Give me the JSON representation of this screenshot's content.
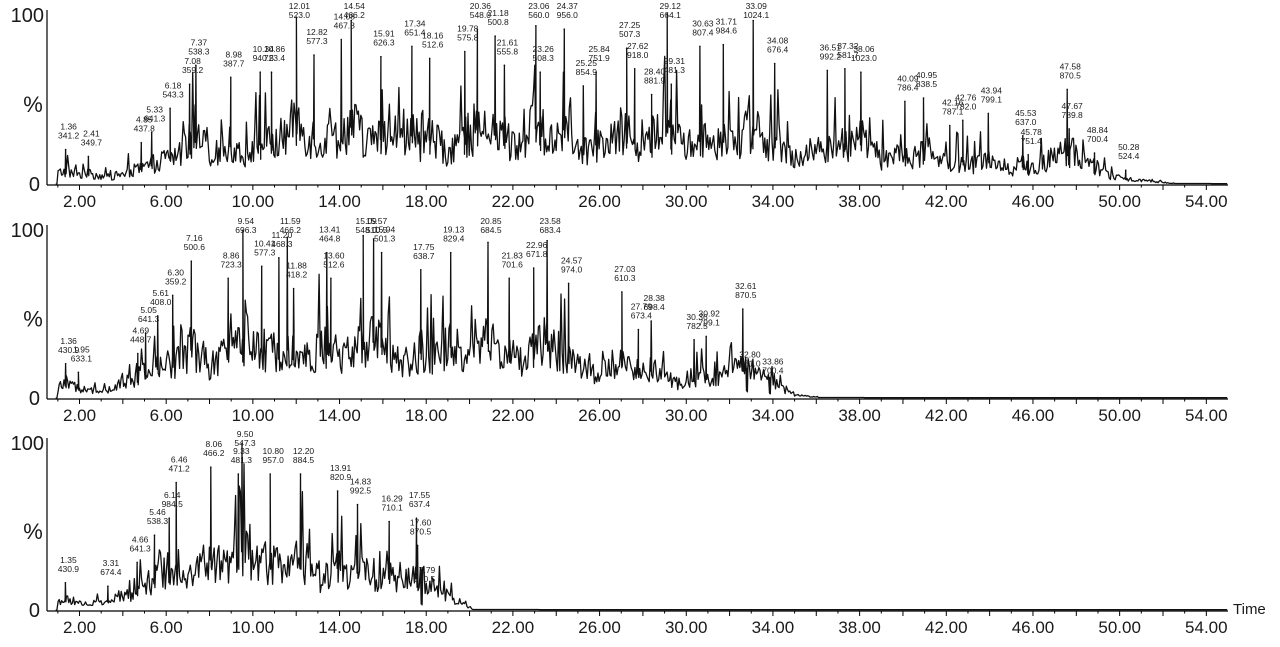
{
  "x_axis_label": "Time",
  "chart_data": [
    {
      "type": "line",
      "ylabel": "%",
      "xlim": [
        0.5,
        55.0
      ],
      "ylim": [
        0,
        100
      ],
      "xticks": [
        "2.00",
        "6.00",
        "10.00",
        "14.00",
        "18.00",
        "22.00",
        "26.00",
        "30.00",
        "34.00",
        "38.00",
        "42.00",
        "46.00",
        "50.00",
        "54.00"
      ],
      "yticks": [
        "0",
        "100"
      ],
      "trace_end": 52.0,
      "peaks": [
        {
          "t": "1.36",
          "mz": "341.2",
          "x": 1.36,
          "y": 20
        },
        {
          "t": "2.41",
          "mz": "349.7",
          "x": 2.41,
          "y": 16
        },
        {
          "t": "4.85",
          "mz": "437.8",
          "x": 4.85,
          "y": 24
        },
        {
          "t": "5.33",
          "mz": "641.3",
          "x": 5.33,
          "y": 30
        },
        {
          "t": "6.18",
          "mz": "543.3",
          "x": 6.18,
          "y": 44
        },
        {
          "t": "7.08",
          "mz": "359.2",
          "x": 7.08,
          "y": 58
        },
        {
          "t": "7.37",
          "mz": "538.3",
          "x": 7.37,
          "y": 69
        },
        {
          "t": "8.98",
          "mz": "387.7",
          "x": 8.98,
          "y": 62
        },
        {
          "t": "10.34",
          "mz": "940.5",
          "x": 10.34,
          "y": 65
        },
        {
          "t": "10.86",
          "mz": "723.4",
          "x": 10.86,
          "y": 65
        },
        {
          "t": "12.01",
          "mz": "523.0",
          "x": 12.01,
          "y": 97
        },
        {
          "t": "12.82",
          "mz": "577.3",
          "x": 12.82,
          "y": 75
        },
        {
          "t": "14.08",
          "mz": "467.8",
          "x": 14.08,
          "y": 84
        },
        {
          "t": "14.54",
          "mz": "466.2",
          "x": 14.54,
          "y": 95
        },
        {
          "t": "15.91",
          "mz": "626.3",
          "x": 15.91,
          "y": 74
        },
        {
          "t": "17.34",
          "mz": "651.4",
          "x": 17.34,
          "y": 80
        },
        {
          "t": "18.16",
          "mz": "512.6",
          "x": 18.16,
          "y": 73
        },
        {
          "t": "19.78",
          "mz": "575.8",
          "x": 19.78,
          "y": 77
        },
        {
          "t": "20.36",
          "mz": "548.0",
          "x": 20.36,
          "y": 90
        },
        {
          "t": "21.18",
          "mz": "500.8",
          "x": 21.18,
          "y": 86
        },
        {
          "t": "21.61",
          "mz": "555.8",
          "x": 21.61,
          "y": 69
        },
        {
          "t": "23.06",
          "mz": "560.0",
          "x": 23.06,
          "y": 92
        },
        {
          "t": "23.26",
          "mz": "508.3",
          "x": 23.26,
          "y": 65
        },
        {
          "t": "24.37",
          "mz": "956.0",
          "x": 24.37,
          "y": 90
        },
        {
          "t": "25.25",
          "mz": "854.9",
          "x": 25.25,
          "y": 57
        },
        {
          "t": "25.84",
          "mz": "751.9",
          "x": 25.84,
          "y": 65
        },
        {
          "t": "27.25",
          "mz": "507.3",
          "x": 27.25,
          "y": 79
        },
        {
          "t": "27.62",
          "mz": "918.0",
          "x": 27.62,
          "y": 67
        },
        {
          "t": "28.40",
          "mz": "881.9",
          "x": 28.4,
          "y": 52
        },
        {
          "t": "29.12",
          "mz": "664.1",
          "x": 29.12,
          "y": 99
        },
        {
          "t": "29.31",
          "mz": "481.3",
          "x": 29.31,
          "y": 58
        },
        {
          "t": "30.63",
          "mz": "807.4",
          "x": 30.63,
          "y": 80
        },
        {
          "t": "31.71",
          "mz": "984.6",
          "x": 31.71,
          "y": 81
        },
        {
          "t": "33.09",
          "mz": "1024.1",
          "x": 33.09,
          "y": 95
        },
        {
          "t": "34.08",
          "mz": "676.4",
          "x": 34.08,
          "y": 70
        },
        {
          "t": "36.51",
          "mz": "992.2",
          "x": 36.51,
          "y": 66
        },
        {
          "t": "37.32",
          "mz": "581.7",
          "x": 37.32,
          "y": 67
        },
        {
          "t": "38.06",
          "mz": "1023.0",
          "x": 38.06,
          "y": 65
        },
        {
          "t": "40.09",
          "mz": "786.4",
          "x": 40.09,
          "y": 48
        },
        {
          "t": "40.95",
          "mz": "838.5",
          "x": 40.95,
          "y": 50
        },
        {
          "t": "42.16",
          "mz": "787.1",
          "x": 42.16,
          "y": 34
        },
        {
          "t": "42.76",
          "mz": "782.0",
          "x": 42.76,
          "y": 37
        },
        {
          "t": "43.94",
          "mz": "799.1",
          "x": 43.94,
          "y": 41
        },
        {
          "t": "45.53",
          "mz": "637.0",
          "x": 45.53,
          "y": 28
        },
        {
          "t": "45.78",
          "mz": "751.4",
          "x": 45.78,
          "y": 17
        },
        {
          "t": "47.58",
          "mz": "870.5",
          "x": 47.58,
          "y": 55
        },
        {
          "t": "47.67",
          "mz": "789.8",
          "x": 47.67,
          "y": 32
        },
        {
          "t": "48.84",
          "mz": "700.4",
          "x": 48.84,
          "y": 18
        },
        {
          "t": "50.28",
          "mz": "524.4",
          "x": 50.28,
          "y": 8
        }
      ]
    },
    {
      "type": "line",
      "ylabel": "%",
      "xlim": [
        0.5,
        55.0
      ],
      "ylim": [
        0,
        100
      ],
      "xticks": [
        "2.00",
        "6.00",
        "10.00",
        "14.00",
        "18.00",
        "22.00",
        "26.00",
        "30.00",
        "34.00",
        "38.00",
        "42.00",
        "46.00",
        "50.00",
        "54.00"
      ],
      "yticks": [
        "0",
        "100"
      ],
      "trace_end": 36.0,
      "peaks": [
        {
          "t": "1.36",
          "mz": "430.9",
          "x": 1.36,
          "y": 20
        },
        {
          "t": "1.95",
          "mz": "633.1",
          "x": 1.95,
          "y": 15
        },
        {
          "t": "4.69",
          "mz": "448.7",
          "x": 4.69,
          "y": 26
        },
        {
          "t": "5.05",
          "mz": "641.3",
          "x": 5.05,
          "y": 38
        },
        {
          "t": "5.61",
          "mz": "408.0",
          "x": 5.61,
          "y": 48
        },
        {
          "t": "6.30",
          "mz": "359.2",
          "x": 6.3,
          "y": 60
        },
        {
          "t": "7.16",
          "mz": "500.6",
          "x": 7.16,
          "y": 80
        },
        {
          "t": "8.86",
          "mz": "723.3",
          "x": 8.86,
          "y": 70
        },
        {
          "t": "9.54",
          "mz": "696.3",
          "x": 9.54,
          "y": 98
        },
        {
          "t": "10.41",
          "mz": "577.3",
          "x": 10.41,
          "y": 77
        },
        {
          "t": "11.20",
          "mz": "468.3",
          "x": 11.2,
          "y": 82
        },
        {
          "t": "11.59",
          "mz": "466.2",
          "x": 11.59,
          "y": 94
        },
        {
          "t": "11.88",
          "mz": "418.2",
          "x": 11.88,
          "y": 64
        },
        {
          "t": "13.41",
          "mz": "464.8",
          "x": 13.41,
          "y": 85
        },
        {
          "t": "13.60",
          "mz": "512.6",
          "x": 13.6,
          "y": 70
        },
        {
          "t": "15.09",
          "mz": "548.0",
          "x": 15.09,
          "y": 95
        },
        {
          "t": "15.57",
          "mz": "510.5",
          "x": 15.57,
          "y": 93
        },
        {
          "t": "15.94",
          "mz": "501.3",
          "x": 15.94,
          "y": 85
        },
        {
          "t": "17.75",
          "mz": "638.7",
          "x": 17.75,
          "y": 75
        },
        {
          "t": "19.13",
          "mz": "829.4",
          "x": 19.13,
          "y": 85
        },
        {
          "t": "20.85",
          "mz": "684.5",
          "x": 20.85,
          "y": 91
        },
        {
          "t": "21.83",
          "mz": "701.6",
          "x": 21.83,
          "y": 70
        },
        {
          "t": "22.96",
          "mz": "671.8",
          "x": 22.96,
          "y": 76
        },
        {
          "t": "23.58",
          "mz": "683.4",
          "x": 23.58,
          "y": 92
        },
        {
          "t": "24.57",
          "mz": "974.0",
          "x": 24.57,
          "y": 67
        },
        {
          "t": "27.03",
          "mz": "610.3",
          "x": 27.03,
          "y": 62
        },
        {
          "t": "27.79",
          "mz": "673.4",
          "x": 27.79,
          "y": 40
        },
        {
          "t": "28.38",
          "mz": "698.4",
          "x": 28.38,
          "y": 45
        },
        {
          "t": "30.36",
          "mz": "782.5",
          "x": 30.36,
          "y": 34
        },
        {
          "t": "30.92",
          "mz": "799.1",
          "x": 30.92,
          "y": 36
        },
        {
          "t": "32.61",
          "mz": "870.5",
          "x": 32.61,
          "y": 52
        },
        {
          "t": "32.80",
          "mz": "861.0",
          "x": 32.8,
          "y": 12
        },
        {
          "t": "33.86",
          "mz": "700.4",
          "x": 33.86,
          "y": 8
        }
      ]
    },
    {
      "type": "line",
      "ylabel": "%",
      "xlim": [
        0.5,
        55.0
      ],
      "ylim": [
        0,
        100
      ],
      "xticks": [
        "2.00",
        "6.00",
        "10.00",
        "14.00",
        "18.00",
        "22.00",
        "26.00",
        "30.00",
        "34.00",
        "38.00",
        "42.00",
        "46.00",
        "50.00",
        "54.00"
      ],
      "yticks": [
        "0",
        "100"
      ],
      "trace_end": 21.0,
      "peaks": [
        {
          "t": "1.35",
          "mz": "430.9",
          "x": 1.35,
          "y": 16
        },
        {
          "t": "3.31",
          "mz": "674.4",
          "x": 3.31,
          "y": 14
        },
        {
          "t": "4.66",
          "mz": "641.3",
          "x": 4.66,
          "y": 28
        },
        {
          "t": "5.46",
          "mz": "538.3",
          "x": 5.46,
          "y": 44
        },
        {
          "t": "6.14",
          "mz": "984.5",
          "x": 6.14,
          "y": 54
        },
        {
          "t": "6.46",
          "mz": "471.2",
          "x": 6.46,
          "y": 75
        },
        {
          "t": "8.06",
          "mz": "466.2",
          "x": 8.06,
          "y": 84
        },
        {
          "t": "9.33",
          "mz": "481.3",
          "x": 9.33,
          "y": 80
        },
        {
          "t": "9.50",
          "mz": "547.3",
          "x": 9.5,
          "y": 98
        },
        {
          "t": "10.80",
          "mz": "957.0",
          "x": 10.8,
          "y": 80
        },
        {
          "t": "12.20",
          "mz": "884.5",
          "x": 12.2,
          "y": 80
        },
        {
          "t": "13.91",
          "mz": "820.9",
          "x": 13.91,
          "y": 70
        },
        {
          "t": "14.83",
          "mz": "992.5",
          "x": 14.83,
          "y": 62
        },
        {
          "t": "16.29",
          "mz": "710.1",
          "x": 16.29,
          "y": 52
        },
        {
          "t": "17.55",
          "mz": "637.4",
          "x": 17.55,
          "y": 54
        },
        {
          "t": "17.60",
          "mz": "870.5",
          "x": 17.6,
          "y": 38
        },
        {
          "t": "17.79",
          "mz": "860.5",
          "x": 17.79,
          "y": 10
        }
      ]
    }
  ]
}
